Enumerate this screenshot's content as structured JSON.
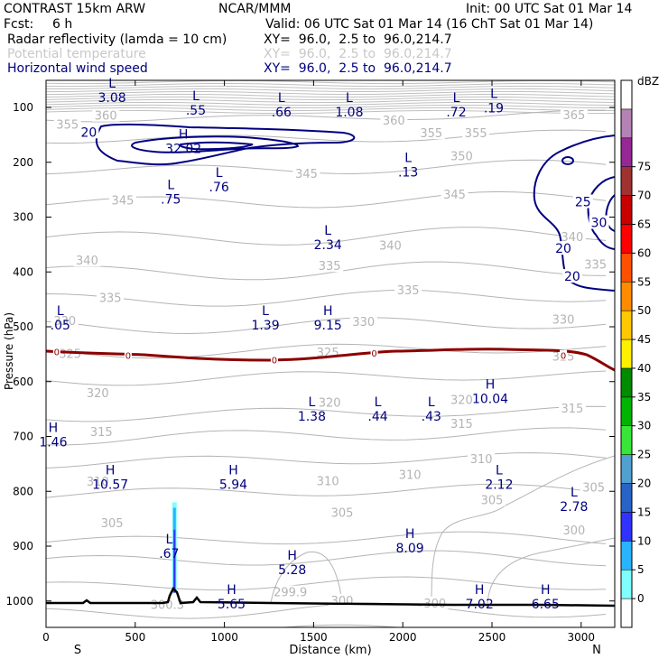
{
  "header": {
    "title": "CONTRAST 15km ARW",
    "center": "NCAR/MMM",
    "init": "Init: 00 UTC Sat 01 Mar 14",
    "fcst_label": "Fcst:",
    "fcst_value": "6 h",
    "valid": "Valid: 06 UTC Sat 01 Mar 14 (16 ChT Sat 01 Mar 14)",
    "fields": [
      {
        "name": "Radar reflectivity (lamda = 10 cm)",
        "xy": "XY=  96.0,  2.5 to  96.0,214.7"
      },
      {
        "name": "Potential temperature",
        "xy": "XY=  96.0,  2.5 to  96.0,214.7"
      },
      {
        "name": "Horizontal wind speed",
        "xy": "XY=  96.0,  2.5 to  96.0,214.7"
      }
    ]
  },
  "chart_data": {
    "type": "cross-section",
    "xlabel": "Distance (km)",
    "ylabel": "Pressure (hPa)",
    "x_ticks": [
      0,
      500,
      1000,
      1500,
      2000,
      2500,
      3000
    ],
    "x_range": [
      0,
      3200
    ],
    "y_ticks": [
      100,
      200,
      300,
      400,
      500,
      600,
      700,
      800,
      900,
      1000
    ],
    "y_range": [
      60,
      1050
    ],
    "left_end_label": "S",
    "right_end_label": "N",
    "colorbar": {
      "unit": "dBZ",
      "levels": [
        0,
        5,
        10,
        15,
        20,
        25,
        30,
        35,
        40,
        45,
        50,
        55,
        60,
        65,
        70,
        75
      ],
      "colors": [
        "#ffffff",
        "#80ffff",
        "#28b4ff",
        "#3232ff",
        "#2864c8",
        "#50a0d0",
        "#38e638",
        "#00b400",
        "#008c00",
        "#fff000",
        "#ffc800",
        "#ff8c00",
        "#ff5000",
        "#ff0000",
        "#c80000",
        "#a03232",
        "#962896",
        "#b482b4",
        "#ffffff"
      ]
    },
    "theta_labels": [
      {
        "value": "355",
        "x": 120,
        "p": 132
      },
      {
        "value": "360",
        "x": 335,
        "p": 116
      },
      {
        "value": "360",
        "x": 1950,
        "p": 125
      },
      {
        "value": "365",
        "x": 2960,
        "p": 115
      },
      {
        "value": "355",
        "x": 2160,
        "p": 148
      },
      {
        "value": "355",
        "x": 2410,
        "p": 148
      },
      {
        "value": "350",
        "x": 2330,
        "p": 190
      },
      {
        "value": "345",
        "x": 1460,
        "p": 222
      },
      {
        "value": "345",
        "x": 2290,
        "p": 260
      },
      {
        "value": "345",
        "x": 430,
        "p": 270
      },
      {
        "value": "340",
        "x": 1930,
        "p": 353
      },
      {
        "value": "340",
        "x": 2950,
        "p": 337
      },
      {
        "value": "340",
        "x": 230,
        "p": 380
      },
      {
        "value": "335",
        "x": 1590,
        "p": 390
      },
      {
        "value": "335",
        "x": 2030,
        "p": 434
      },
      {
        "value": "335",
        "x": 360,
        "p": 448
      },
      {
        "value": "335",
        "x": 3080,
        "p": 387
      },
      {
        "value": "330",
        "x": 105,
        "p": 490
      },
      {
        "value": "330",
        "x": 1780,
        "p": 492
      },
      {
        "value": "330",
        "x": 2900,
        "p": 488
      },
      {
        "value": "325",
        "x": 135,
        "p": 550
      },
      {
        "value": "325",
        "x": 1580,
        "p": 548
      },
      {
        "value": "325",
        "x": 2900,
        "p": 555
      },
      {
        "value": "320",
        "x": 290,
        "p": 622
      },
      {
        "value": "320",
        "x": 1590,
        "p": 639
      },
      {
        "value": "320",
        "x": 2330,
        "p": 634
      },
      {
        "value": "315",
        "x": 310,
        "p": 693
      },
      {
        "value": "315",
        "x": 2330,
        "p": 678
      },
      {
        "value": "315",
        "x": 2950,
        "p": 650
      },
      {
        "value": "310",
        "x": 290,
        "p": 783
      },
      {
        "value": "310",
        "x": 1580,
        "p": 782
      },
      {
        "value": "310",
        "x": 2040,
        "p": 771
      },
      {
        "value": "310",
        "x": 2440,
        "p": 742
      },
      {
        "value": "305",
        "x": 370,
        "p": 859
      },
      {
        "value": "305",
        "x": 1660,
        "p": 840
      },
      {
        "value": "305",
        "x": 2500,
        "p": 817
      },
      {
        "value": "305",
        "x": 3070,
        "p": 794
      },
      {
        "value": "300",
        "x": 2960,
        "p": 872
      },
      {
        "value": "300",
        "x": 1660,
        "p": 1000
      },
      {
        "value": "300",
        "x": 2180,
        "p": 1005
      },
      {
        "value": "300.3",
        "x": 680,
        "p": 1008
      },
      {
        "value": "299.9",
        "x": 1370,
        "p": 985
      }
    ],
    "wind_labels": [
      {
        "value": "20",
        "x": 240,
        "p": 145
      },
      {
        "value": "25",
        "x": 3010,
        "p": 272
      },
      {
        "value": "30",
        "x": 3100,
        "p": 310
      },
      {
        "value": "20",
        "x": 2900,
        "p": 357
      },
      {
        "value": "20",
        "x": 2950,
        "p": 408
      }
    ],
    "zero_labels": [
      {
        "value": "0",
        "x": 60,
        "p": 545
      },
      {
        "value": "0",
        "x": 460,
        "p": 552
      },
      {
        "value": "0",
        "x": 1280,
        "p": 560
      },
      {
        "value": "0",
        "x": 1840,
        "p": 548
      },
      {
        "value": "0",
        "x": 2900,
        "p": 552
      }
    ],
    "extrema": [
      {
        "kind": "L",
        "value": "3.08",
        "x": 370,
        "p": 77
      },
      {
        "kind": "L",
        "value": ".55",
        "x": 840,
        "p": 100
      },
      {
        "kind": "L",
        "value": ".66",
        "x": 1320,
        "p": 103
      },
      {
        "kind": "L",
        "value": "1.08",
        "x": 1700,
        "p": 103
      },
      {
        "kind": "L",
        "value": ".72",
        "x": 2300,
        "p": 103
      },
      {
        "kind": "L",
        "value": ".19",
        "x": 2510,
        "p": 96
      },
      {
        "kind": "H",
        "value": "32.02",
        "x": 770,
        "p": 170
      },
      {
        "kind": "L",
        "value": ".75",
        "x": 700,
        "p": 262
      },
      {
        "kind": "L",
        "value": ".76",
        "x": 970,
        "p": 240
      },
      {
        "kind": "L",
        "value": ".13",
        "x": 2030,
        "p": 213
      },
      {
        "kind": "L",
        "value": "2.34",
        "x": 1580,
        "p": 345
      },
      {
        "kind": "L",
        "value": ".05",
        "x": 80,
        "p": 492
      },
      {
        "kind": "L",
        "value": "1.39",
        "x": 1230,
        "p": 492
      },
      {
        "kind": "H",
        "value": "9.15",
        "x": 1580,
        "p": 492
      },
      {
        "kind": "H",
        "value": "10.04",
        "x": 2490,
        "p": 626
      },
      {
        "kind": "L",
        "value": "1.38",
        "x": 1490,
        "p": 658
      },
      {
        "kind": "L",
        "value": ".44",
        "x": 1860,
        "p": 658
      },
      {
        "kind": "L",
        "value": ".43",
        "x": 2160,
        "p": 658
      },
      {
        "kind": "H",
        "value": "1.46",
        "x": 40,
        "p": 705
      },
      {
        "kind": "H",
        "value": "10.57",
        "x": 360,
        "p": 782
      },
      {
        "kind": "H",
        "value": "5.94",
        "x": 1050,
        "p": 782
      },
      {
        "kind": "L",
        "value": "2.12",
        "x": 2540,
        "p": 782
      },
      {
        "kind": "L",
        "value": "2.78",
        "x": 2960,
        "p": 823
      },
      {
        "kind": "L",
        "value": ".67",
        "x": 690,
        "p": 908
      },
      {
        "kind": "H",
        "value": "8.09",
        "x": 2040,
        "p": 898
      },
      {
        "kind": "H",
        "value": "5.28",
        "x": 1380,
        "p": 938
      },
      {
        "kind": "H",
        "value": "5.65",
        "x": 1040,
        "p": 1000
      },
      {
        "kind": "H",
        "value": "7.02",
        "x": 2430,
        "p": 1000
      },
      {
        "kind": "H",
        "value": "6.65",
        "x": 2800,
        "p": 1000
      }
    ]
  }
}
